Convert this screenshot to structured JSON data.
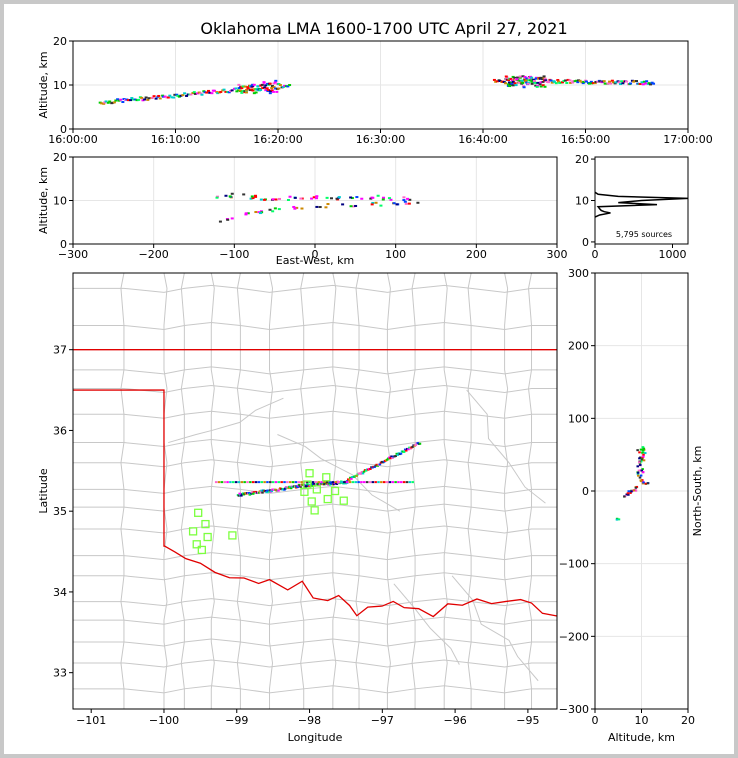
{
  "title": "Oklahoma LMA 1600-1700 UTC April 27, 2021",
  "chart_data": [
    {
      "panel": "time-height",
      "type": "scatter",
      "ylabel": "Altitude, km",
      "xlim": [
        "16:00:00",
        "17:00:00"
      ],
      "ylim": [
        0,
        20
      ],
      "xticks": [
        "16:00:00",
        "16:10:00",
        "16:20:00",
        "16:30:00",
        "16:40:00",
        "16:50:00",
        "17:00:00"
      ],
      "yticks": [
        "0",
        "10",
        "20"
      ],
      "grid": true,
      "segments": [
        {
          "t_start_min": 2.5,
          "t_end_min": 21,
          "alt_start_km": 6,
          "alt_end_km": 10,
          "dense_min": [
            16,
            20
          ]
        },
        {
          "t_start_min": 41,
          "t_end_min": 56.5,
          "alt_start_km": 11,
          "alt_end_km": 10.5,
          "dense_min": [
            42,
            46
          ]
        }
      ]
    },
    {
      "panel": "east-west-altitude",
      "type": "scatter",
      "xlabel": "East-West, km",
      "ylabel": "Altitude, km",
      "xlim": [
        -300,
        300
      ],
      "ylim": [
        0,
        20
      ],
      "xticks": [
        "−300",
        "−200",
        "−100",
        "0",
        "100",
        "200",
        "300"
      ],
      "yticks": [
        "0",
        "10",
        "20"
      ],
      "grid": true,
      "points": [
        {
          "x": -115,
          "y": 11
        },
        {
          "x": -100,
          "y": 11.2
        },
        {
          "x": -85,
          "y": 10.8
        },
        {
          "x": -70,
          "y": 10.5
        },
        {
          "x": -50,
          "y": 10.4
        },
        {
          "x": -30,
          "y": 10.5
        },
        {
          "x": -10,
          "y": 10.5
        },
        {
          "x": 10,
          "y": 10.6
        },
        {
          "x": 30,
          "y": 10.6
        },
        {
          "x": 50,
          "y": 10.7
        },
        {
          "x": 70,
          "y": 10.7
        },
        {
          "x": 90,
          "y": 10.5
        },
        {
          "x": 110,
          "y": 10.4
        },
        {
          "x": -85,
          "y": 7
        },
        {
          "x": -70,
          "y": 7.3
        },
        {
          "x": -50,
          "y": 7.8
        },
        {
          "x": -20,
          "y": 8.4
        },
        {
          "x": 10,
          "y": 8.8
        },
        {
          "x": 40,
          "y": 9
        },
        {
          "x": 70,
          "y": 9.2
        },
        {
          "x": 100,
          "y": 9.4
        },
        {
          "x": 120,
          "y": 9.6
        },
        {
          "x": -110,
          "y": 5.5
        }
      ]
    },
    {
      "panel": "altitude-histogram",
      "type": "line",
      "xlim": [
        0,
        1200
      ],
      "ylim": [
        0,
        20
      ],
      "xticks": [
        "0",
        "1000"
      ],
      "yticks": [
        "0",
        "10",
        "20"
      ],
      "annotation": "5,795 sources",
      "profile": [
        [
          6,
          0
        ],
        [
          6.5,
          60
        ],
        [
          7,
          200
        ],
        [
          7.3,
          120
        ],
        [
          7.6,
          80
        ],
        [
          8,
          60
        ],
        [
          8.5,
          40
        ],
        [
          9,
          800
        ],
        [
          9.5,
          300
        ],
        [
          10,
          600
        ],
        [
          10.5,
          1200
        ],
        [
          11,
          300
        ],
        [
          11.5,
          40
        ],
        [
          12,
          0
        ]
      ]
    },
    {
      "panel": "map",
      "type": "scatter",
      "xlabel": "Longitude",
      "ylabel": "Latitude",
      "xlim": [
        -101.25,
        -94.6
      ],
      "ylim": [
        32.55,
        37.95
      ],
      "xticks": [
        "−101",
        "−100",
        "−99",
        "−98",
        "−97",
        "−96",
        "−95"
      ],
      "yticks": [
        "33",
        "34",
        "35",
        "36",
        "37"
      ],
      "stations": [
        [
          -98.0,
          35.47
        ],
        [
          -97.77,
          35.42
        ],
        [
          -98.03,
          35.33
        ],
        [
          -97.9,
          35.27
        ],
        [
          -98.07,
          35.24
        ],
        [
          -97.65,
          35.25
        ],
        [
          -97.97,
          35.12
        ],
        [
          -97.75,
          35.15
        ],
        [
          -97.53,
          35.13
        ],
        [
          -97.93,
          35.01
        ],
        [
          -99.53,
          34.98
        ],
        [
          -99.43,
          34.84
        ],
        [
          -99.6,
          34.75
        ],
        [
          -99.4,
          34.68
        ],
        [
          -99.06,
          34.7
        ],
        [
          -99.55,
          34.59
        ],
        [
          -99.48,
          34.52
        ]
      ],
      "lightning": [
        {
          "lon1": -99.0,
          "lat1": 35.2,
          "lon2": -98.2,
          "lat2": 35.3
        },
        {
          "lon1": -98.2,
          "lat1": 35.31,
          "lon2": -97.5,
          "lat2": 35.36
        },
        {
          "lon1": -97.5,
          "lat1": 35.38,
          "lon2": -96.5,
          "lat2": 35.85
        },
        {
          "lon1": -99.3,
          "lat1": 35.36,
          "lon2": -96.6,
          "lat2": 35.36
        }
      ]
    },
    {
      "panel": "altitude-north-south",
      "type": "scatter",
      "xlabel": "Altitude, km",
      "ylabel": "North-South, km",
      "xlim": [
        0,
        20
      ],
      "ylim": [
        -300,
        300
      ],
      "xticks": [
        "0",
        "10",
        "20"
      ],
      "yticks": [
        "−300",
        "−200",
        "−100",
        "0",
        "100",
        "200",
        "300"
      ],
      "grid": true,
      "points": [
        [
          10,
          60
        ],
        [
          10.5,
          58
        ],
        [
          9.5,
          55
        ],
        [
          10.5,
          52
        ],
        [
          10,
          48
        ],
        [
          9.8,
          45
        ],
        [
          10.2,
          42
        ],
        [
          9.6,
          40
        ],
        [
          9.5,
          35
        ],
        [
          9.8,
          30
        ],
        [
          10,
          27
        ],
        [
          9.2,
          24
        ],
        [
          9.5,
          20
        ],
        [
          9.8,
          15
        ],
        [
          10,
          12
        ],
        [
          10.5,
          10
        ],
        [
          11,
          10
        ],
        [
          9,
          5
        ],
        [
          8.5,
          2
        ],
        [
          8,
          0
        ],
        [
          7.5,
          -2
        ],
        [
          7,
          -5
        ],
        [
          6.5,
          -7
        ],
        [
          5,
          -38
        ]
      ]
    }
  ]
}
